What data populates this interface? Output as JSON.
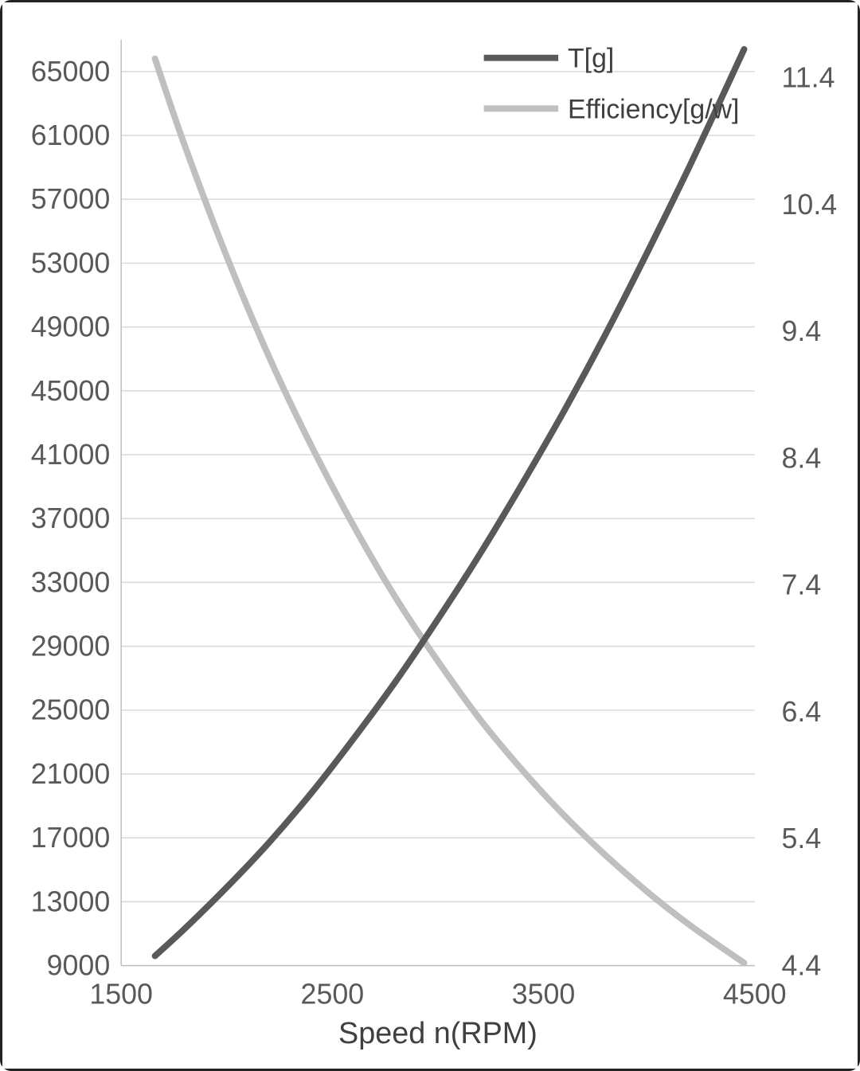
{
  "figure": {
    "background": "#ffffff",
    "border_color": "#222222"
  },
  "styles": {
    "tick_color": "#595959",
    "label_color": "#404040",
    "grid_color": "#d9d9d9",
    "axis_line_color": "#bfbfbf"
  },
  "chart_data": {
    "type": "line",
    "title": "",
    "xlabel": "Speed n(RPM)",
    "ylabel": "",
    "grid": {
      "show": true,
      "color": "#d9d9d9",
      "orientation": "horizontal"
    },
    "legend": {
      "position": "top-right",
      "entries": [
        "T[g]",
        "Efficiency[g/w]"
      ]
    },
    "x_axis": {
      "min": 1500,
      "max": 4500,
      "ticks": [
        1500,
        2500,
        3500,
        4500
      ]
    },
    "left_axis": {
      "min": 9000,
      "max": 67000,
      "ticks": [
        9000,
        13000,
        17000,
        21000,
        25000,
        29000,
        33000,
        37000,
        41000,
        45000,
        49000,
        53000,
        57000,
        61000,
        65000
      ]
    },
    "right_axis": {
      "min": 4.4,
      "max": 11.7,
      "decimals": 1,
      "ticks": [
        4.4,
        5.4,
        6.4,
        7.4,
        8.4,
        9.4,
        10.4,
        11.4
      ]
    },
    "x": [
      1660,
      1800,
      2000,
      2200,
      2400,
      2600,
      2800,
      3000,
      3200,
      3400,
      3600,
      3800,
      4000,
      4200,
      4450
    ],
    "series": [
      {
        "name": "T[g]",
        "axis": "left",
        "color": "#595959",
        "values": [
          9600,
          11300,
          13900,
          16700,
          19800,
          23200,
          26800,
          30700,
          34800,
          39200,
          43800,
          48700,
          53900,
          59300,
          66400
        ]
      },
      {
        "name": "Efficiency[g/w]",
        "axis": "right",
        "color": "#bfbfbf",
        "values": [
          11.55,
          10.87,
          9.99,
          9.2,
          8.5,
          7.87,
          7.3,
          6.8,
          6.34,
          5.94,
          5.58,
          5.26,
          4.97,
          4.71,
          4.42
        ]
      }
    ]
  }
}
